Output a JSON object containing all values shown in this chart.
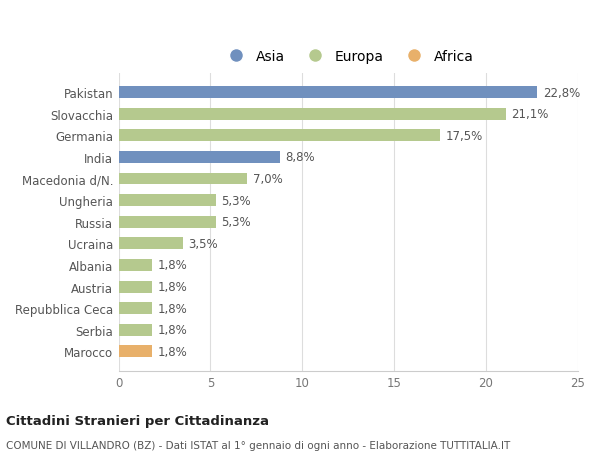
{
  "countries": [
    "Pakistan",
    "Slovacchia",
    "Germania",
    "India",
    "Macedonia d/N.",
    "Ungheria",
    "Russia",
    "Ucraina",
    "Albania",
    "Austria",
    "Repubblica Ceca",
    "Serbia",
    "Marocco"
  ],
  "values": [
    22.8,
    21.1,
    17.5,
    8.8,
    7.0,
    5.3,
    5.3,
    3.5,
    1.8,
    1.8,
    1.8,
    1.8,
    1.8
  ],
  "labels": [
    "22,8%",
    "21,1%",
    "17,5%",
    "8,8%",
    "7,0%",
    "5,3%",
    "5,3%",
    "3,5%",
    "1,8%",
    "1,8%",
    "1,8%",
    "1,8%",
    "1,8%"
  ],
  "continents": [
    "Asia",
    "Europa",
    "Europa",
    "Asia",
    "Europa",
    "Europa",
    "Europa",
    "Europa",
    "Europa",
    "Europa",
    "Europa",
    "Europa",
    "Africa"
  ],
  "colors": {
    "Asia": "#7090be",
    "Europa": "#b5c98e",
    "Africa": "#e8b06a"
  },
  "legend_labels": [
    "Asia",
    "Europa",
    "Africa"
  ],
  "xlim": [
    0,
    25
  ],
  "xticks": [
    0,
    5,
    10,
    15,
    20,
    25
  ],
  "title1": "Cittadini Stranieri per Cittadinanza",
  "title2": "COMUNE DI VILLANDRO (BZ) - Dati ISTAT al 1° gennaio di ogni anno - Elaborazione TUTTITALIA.IT",
  "background_color": "#ffffff",
  "bar_height": 0.55
}
